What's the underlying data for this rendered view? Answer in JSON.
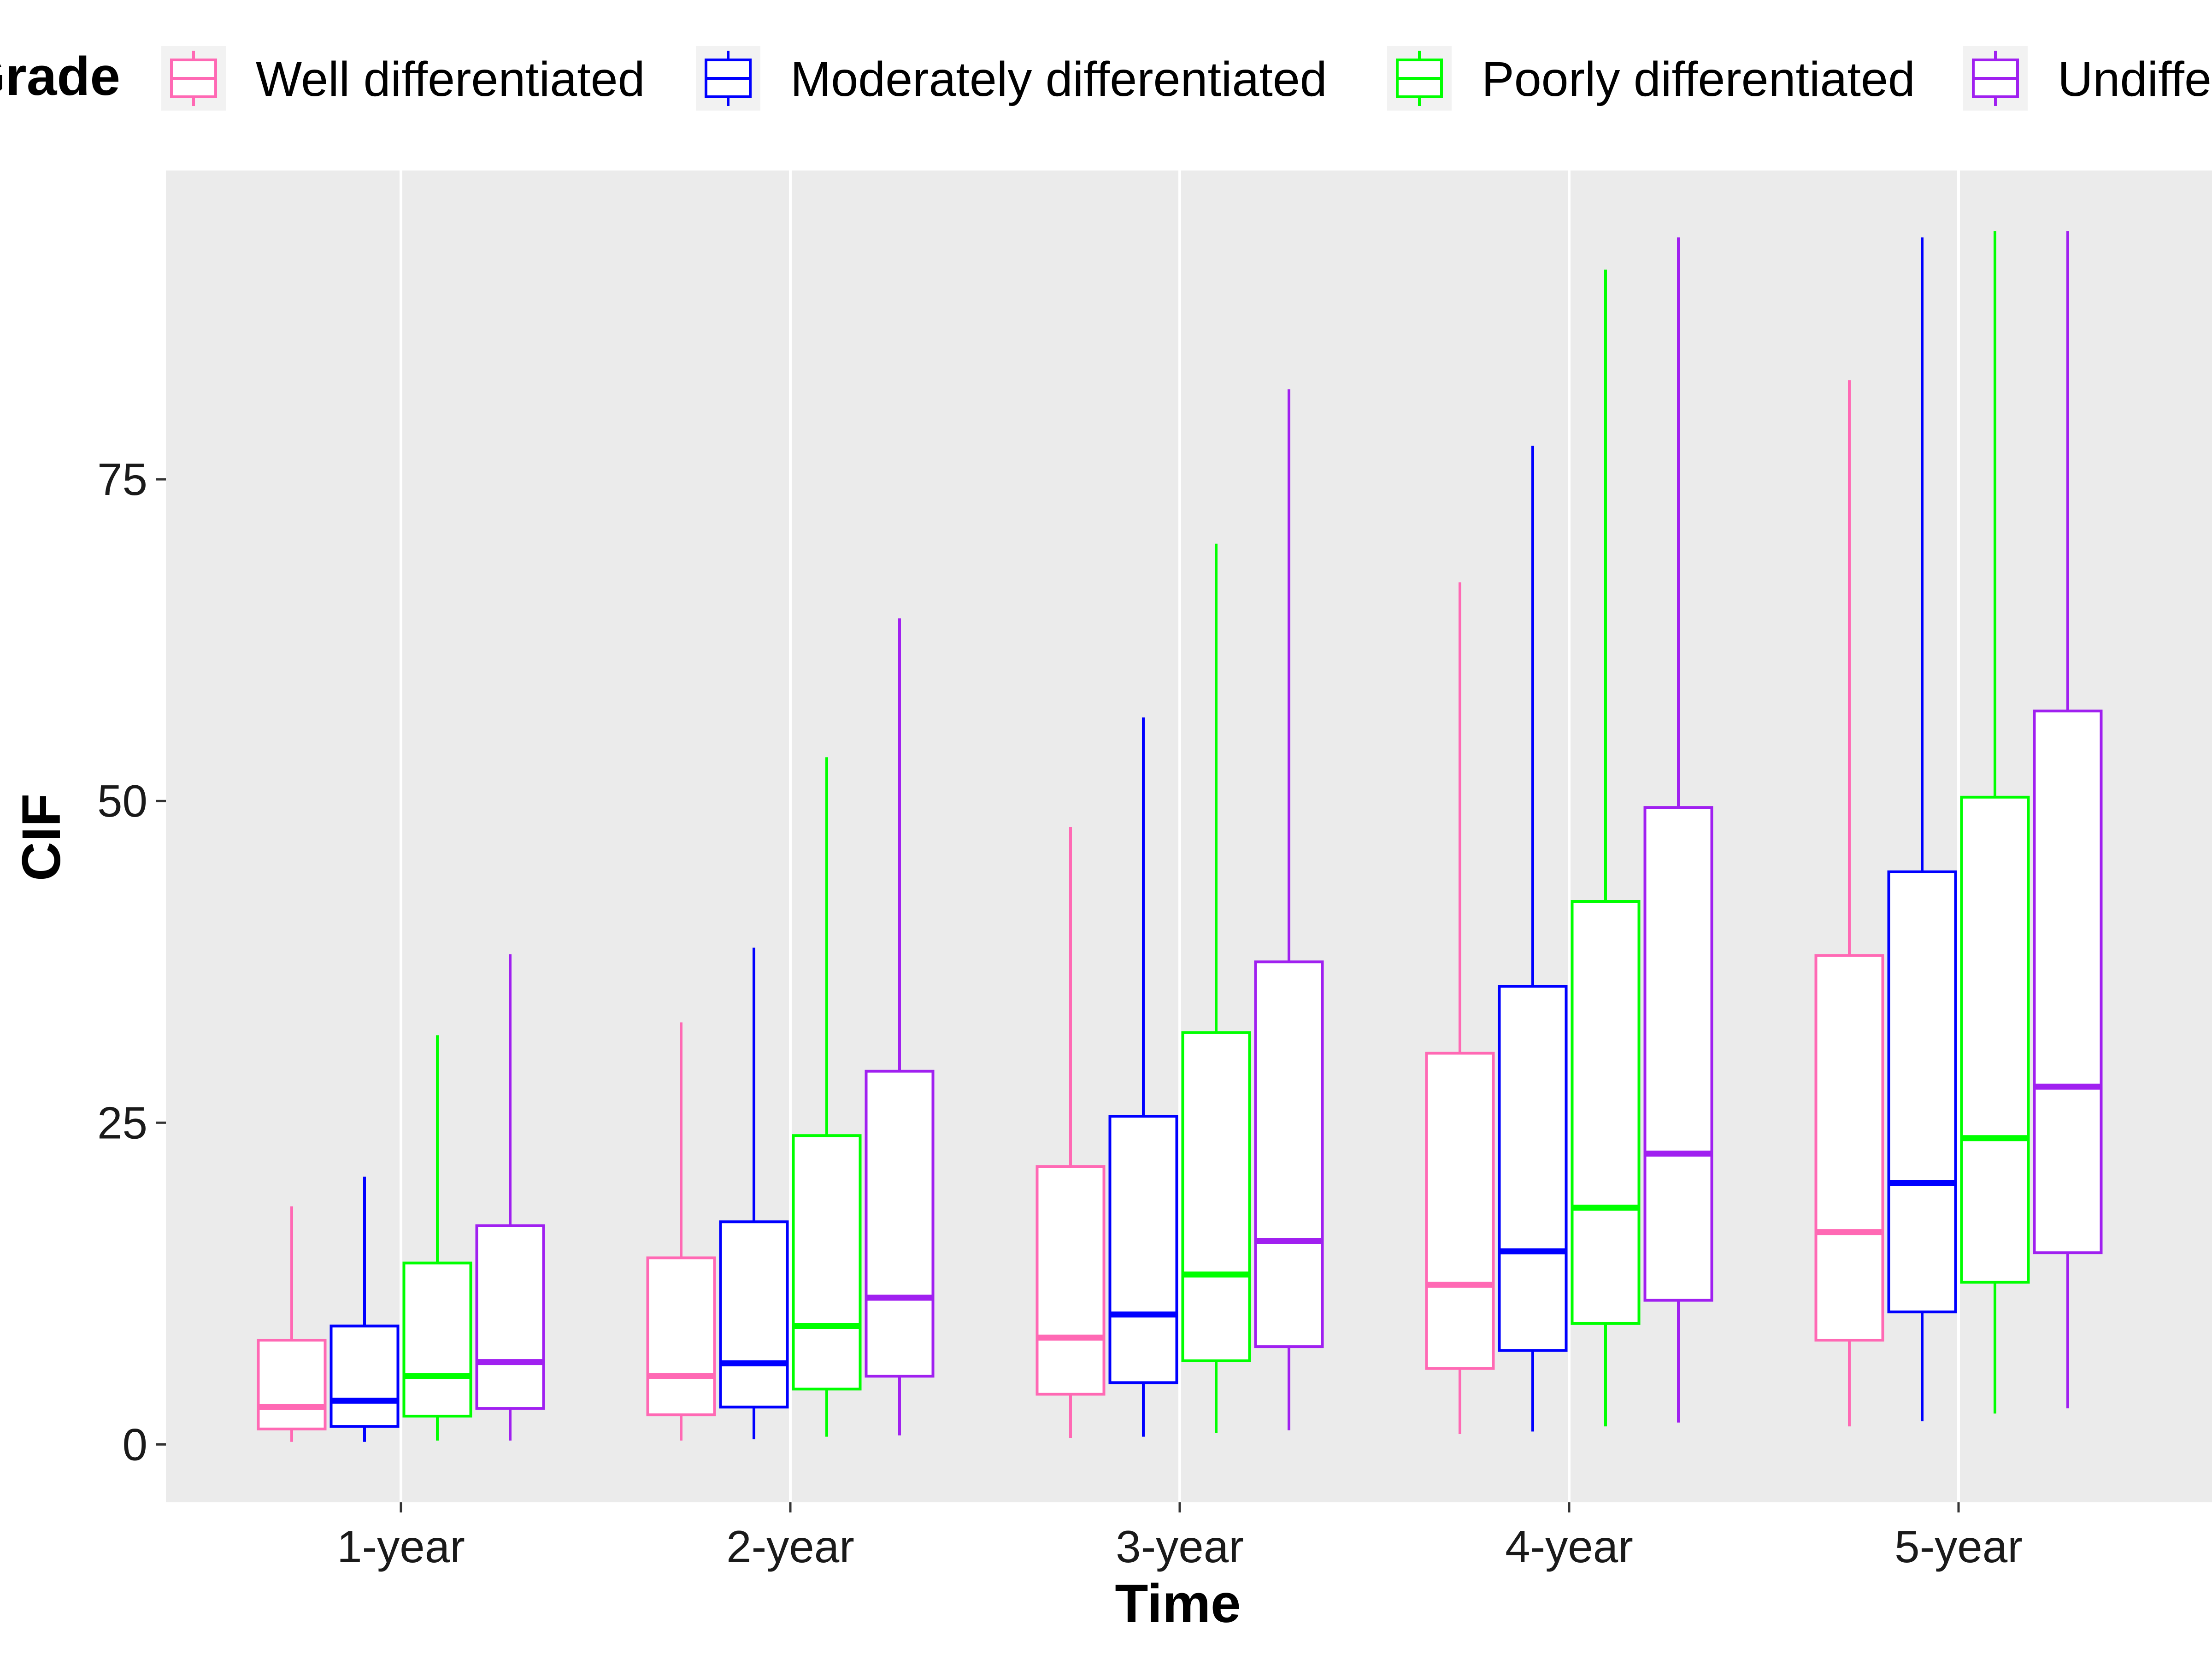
{
  "chart_data": {
    "type": "box",
    "title": "",
    "xlabel": "Time",
    "ylabel": "CIF",
    "legend_title": "Grade",
    "legend_position": "top",
    "grid": true,
    "ylim": [
      -4.5,
      99
    ],
    "yticks": [
      0,
      25,
      50,
      75
    ],
    "categories": [
      "1-year",
      "2-year",
      "3-year",
      "4-year",
      "5-year"
    ],
    "series": [
      {
        "name": "Well differentiated",
        "color": "#FF69B4",
        "boxes": [
          {
            "min": 0.2,
            "q1": 1.2,
            "median": 2.9,
            "q3": 8.1,
            "max": 18.5
          },
          {
            "min": 0.3,
            "q1": 2.3,
            "median": 5.3,
            "q3": 14.5,
            "max": 32.8
          },
          {
            "min": 0.5,
            "q1": 3.9,
            "median": 8.3,
            "q3": 21.6,
            "max": 48.0
          },
          {
            "min": 0.8,
            "q1": 5.9,
            "median": 12.4,
            "q3": 30.4,
            "max": 67.0
          },
          {
            "min": 1.4,
            "q1": 8.1,
            "median": 16.5,
            "q3": 38.0,
            "max": 82.7
          }
        ]
      },
      {
        "name": "Moderately differentiated",
        "color": "#0000FF",
        "boxes": [
          {
            "min": 0.2,
            "q1": 1.4,
            "median": 3.4,
            "q3": 9.2,
            "max": 20.8
          },
          {
            "min": 0.4,
            "q1": 2.9,
            "median": 6.3,
            "q3": 17.3,
            "max": 38.6
          },
          {
            "min": 0.6,
            "q1": 4.8,
            "median": 10.1,
            "q3": 25.5,
            "max": 56.5
          },
          {
            "min": 1.0,
            "q1": 7.3,
            "median": 15.0,
            "q3": 35.6,
            "max": 77.6
          },
          {
            "min": 1.8,
            "q1": 10.3,
            "median": 20.3,
            "q3": 44.5,
            "max": 93.8
          }
        ]
      },
      {
        "name": "Poorly differentiated",
        "color": "#00FF00",
        "boxes": [
          {
            "min": 0.3,
            "q1": 2.2,
            "median": 5.3,
            "q3": 14.1,
            "max": 31.8
          },
          {
            "min": 0.6,
            "q1": 4.3,
            "median": 9.2,
            "q3": 24.0,
            "max": 53.4
          },
          {
            "min": 0.9,
            "q1": 6.5,
            "median": 13.2,
            "q3": 32.0,
            "max": 70.0
          },
          {
            "min": 1.4,
            "q1": 9.4,
            "median": 18.4,
            "q3": 42.2,
            "max": 91.3
          },
          {
            "min": 2.4,
            "q1": 12.6,
            "median": 23.8,
            "q3": 50.3,
            "max": 94.3
          }
        ]
      },
      {
        "name": "Undifferentiated",
        "color": "#A020F0",
        "boxes": [
          {
            "min": 0.3,
            "q1": 2.8,
            "median": 6.4,
            "q3": 17.0,
            "max": 38.1
          },
          {
            "min": 0.7,
            "q1": 5.3,
            "median": 11.4,
            "q3": 29.0,
            "max": 64.2
          },
          {
            "min": 1.1,
            "q1": 7.6,
            "median": 15.8,
            "q3": 37.5,
            "max": 82.0
          },
          {
            "min": 1.7,
            "q1": 11.2,
            "median": 22.6,
            "q3": 49.5,
            "max": 93.8
          },
          {
            "min": 2.8,
            "q1": 14.9,
            "median": 27.8,
            "q3": 57.0,
            "max": 94.3
          }
        ]
      }
    ]
  }
}
